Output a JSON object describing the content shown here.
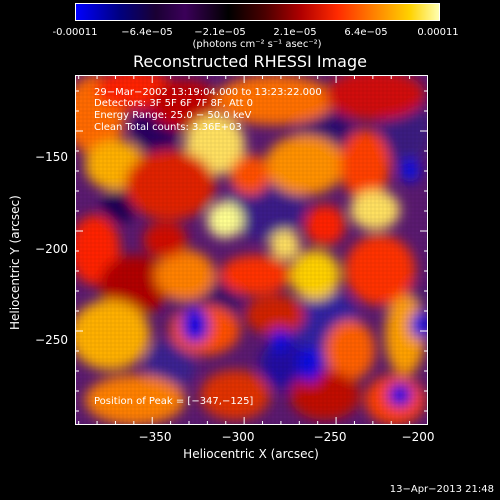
{
  "colorbar": {
    "labels": [
      "-0.00011",
      "−6.4e−05",
      "−2.1e−05",
      "2.1e−05",
      "6.4e−05",
      "0.00011"
    ],
    "unit": "(photons cm⁻² s⁻¹ asec⁻²)"
  },
  "chart_data": {
    "type": "heatmap",
    "title": "Reconstructed RHESSI Image",
    "xlabel": "Heliocentric X (arcsec)",
    "ylabel": "Heliocentric Y (arcsec)",
    "xlim": [
      -392,
      -200
    ],
    "ylim": [
      -297,
      -122
    ],
    "x_ticks": [
      -350,
      -300,
      -250,
      -200
    ],
    "x_tick_labels": [
      "−350",
      "−300",
      "−250",
      "−200"
    ],
    "y_ticks": [
      -150,
      -200,
      -250
    ],
    "y_tick_labels": [
      "−150",
      "−200",
      "−250"
    ],
    "color_range": [
      -0.00011,
      0.00011
    ],
    "info_lines": [
      "29−Mar−2002 13:19:04.000 to 13:23:22.000",
      "Detectors: 3F 5F 6F 7F 8F, Att 0",
      "Energy Range: 25.0 − 50.0 keV",
      "Clean    Total counts: 3.36E+03"
    ],
    "peak_text": "Position of Peak = [−347,−125]"
  },
  "footer": {
    "timestamp": "13−Apr−2013 21:48"
  }
}
